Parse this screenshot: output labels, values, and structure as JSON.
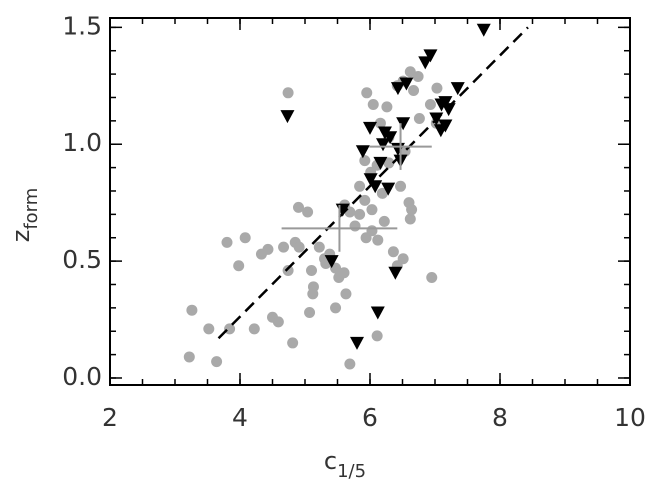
{
  "chart_data": {
    "type": "scatter",
    "xlabel": {
      "main": "c",
      "sub": "1/5"
    },
    "ylabel": {
      "main": "z",
      "sub": "form"
    },
    "xlim": [
      2,
      10
    ],
    "ylim": [
      -0.03,
      1.54
    ],
    "xticks": [
      2,
      4,
      6,
      8,
      10
    ],
    "yticks": [
      {
        "value": 0,
        "label": "0.0"
      },
      0.5,
      {
        "value": 1,
        "label": "1.0"
      },
      1.5
    ],
    "series": [
      {
        "marker": "circle",
        "color": "#a9a9a9",
        "x": [
          4.74,
          3.26,
          3.22,
          3.52,
          3.64,
          3.8,
          4.08,
          3.98,
          3.84,
          4.22,
          4.33,
          4.43,
          4.5,
          4.59,
          4.67,
          4.74,
          4.81,
          4.9,
          5.04,
          4.85,
          4.91,
          5.1,
          5.13,
          5.12,
          5.07,
          5.22,
          5.32,
          5.3,
          5.38,
          5.47,
          5.52,
          5.6,
          5.63,
          5.47,
          5.69,
          5.61,
          5.69,
          5.77,
          5.84,
          5.84,
          5.92,
          5.94,
          6.03,
          6.03,
          6.12,
          6.19,
          6.22,
          5.95,
          6.05,
          6.16,
          6.26,
          6.29,
          5.92,
          6.01,
          6.11,
          6.29,
          6.42,
          6.51,
          6.62,
          6.47,
          6.54,
          6.6,
          6.62,
          6.64,
          6.51,
          6.42,
          6.36,
          6.11,
          6.67,
          6.76,
          6.93,
          6.95,
          7.02,
          7.03,
          6.74
        ],
        "values": [
          1.22,
          0.29,
          0.09,
          0.21,
          0.07,
          0.58,
          0.6,
          0.48,
          0.21,
          0.21,
          0.53,
          0.55,
          0.26,
          0.24,
          0.56,
          0.46,
          0.15,
          0.73,
          0.71,
          0.58,
          0.56,
          0.46,
          0.39,
          0.36,
          0.28,
          0.56,
          0.49,
          0.51,
          0.53,
          0.47,
          0.43,
          0.45,
          0.36,
          0.3,
          0.06,
          0.74,
          0.71,
          0.65,
          0.7,
          0.82,
          0.76,
          0.6,
          0.63,
          0.72,
          0.59,
          0.79,
          0.67,
          1.22,
          1.17,
          1.09,
          1.16,
          0.92,
          0.93,
          0.88,
          0.91,
          1.03,
          1.25,
          1.27,
          1.31,
          0.82,
          0.97,
          0.75,
          0.68,
          0.72,
          0.51,
          0.48,
          0.54,
          0.18,
          1.23,
          1.11,
          1.17,
          0.43,
          1.09,
          1.24,
          1.29
        ]
      },
      {
        "marker": "triangle-down",
        "color": "#000000",
        "x": [
          4.73,
          5.58,
          5.41,
          5.8,
          6.12,
          6.39,
          5.89,
          6.01,
          6.08,
          6.28,
          6.16,
          6.2,
          6.0,
          6.23,
          6.31,
          6.43,
          6.47,
          6.51,
          6.43,
          6.56,
          6.85,
          6.93,
          7.09,
          7.16,
          7.1,
          7.21,
          7.35,
          7.02,
          7.75,
          7.16
        ],
        "values": [
          1.12,
          0.72,
          0.5,
          0.15,
          0.28,
          0.45,
          0.97,
          0.85,
          0.82,
          0.81,
          0.92,
          1.0,
          1.07,
          1.05,
          1.03,
          0.98,
          0.93,
          1.09,
          1.24,
          1.26,
          1.35,
          1.38,
          1.06,
          1.18,
          1.17,
          1.15,
          1.24,
          1.11,
          1.49,
          1.08
        ]
      }
    ],
    "fit_line": {
      "x": [
        3.67,
        8.43
      ],
      "values": [
        0.17,
        1.5
      ],
      "color": "#000000",
      "dashed": true
    },
    "error_bars": [
      {
        "x": 5.53,
        "y": 0.64,
        "xerr": 0.89,
        "yerr": 0.1,
        "color": "#999999"
      },
      {
        "x": 6.47,
        "y": 0.99,
        "xerr": 0.48,
        "yerr": 0.1,
        "color": "#999999"
      }
    ]
  }
}
